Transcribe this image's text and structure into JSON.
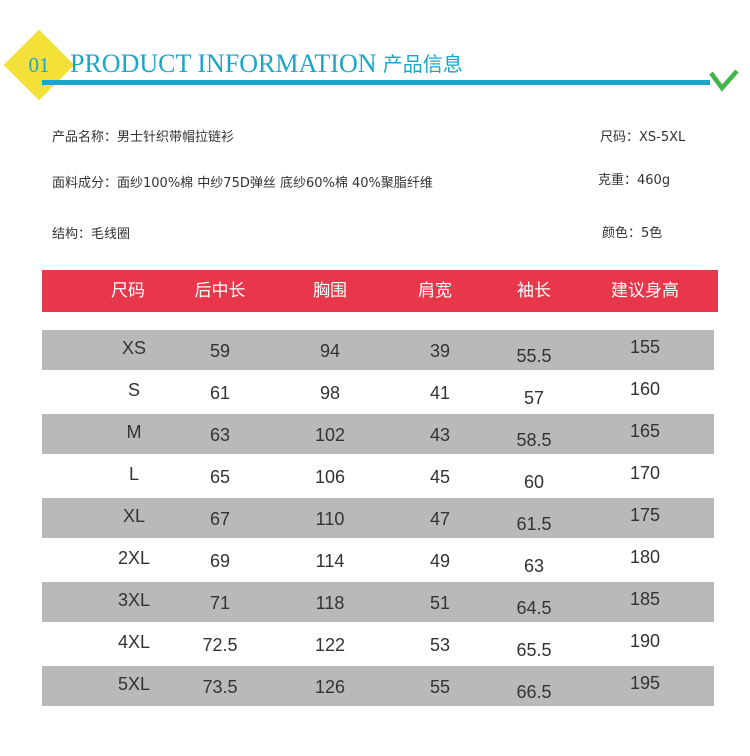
{
  "header": {
    "badge_number": "01",
    "title": "PRODUCT INFORMATION",
    "subtitle": "· 产品信息",
    "accent_color": "#1aa6c8",
    "badge_color": "#f3e13a",
    "check_color": "#3fb54a",
    "check_icon": "check-icon"
  },
  "info": {
    "name": "产品名称：男士针织带帽拉链衫",
    "size": "尺码：XS-5XL",
    "fabric": "面料成分：面纱100%棉 中纱75D弹丝 底纱60%棉 40%聚脂纤维",
    "weight": "克重：460g",
    "structure": "结构：毛线圈",
    "color": "颜色：5色"
  },
  "table": {
    "header_color": "#e8374a",
    "row_gray_color": "#b8b9bb",
    "headers": [
      "尺码",
      "后中长",
      "胸围",
      "肩宽",
      "袖长",
      "建议身高"
    ],
    "rows": [
      [
        "XS",
        "59",
        "94",
        "39",
        "55.5",
        "155"
      ],
      [
        "S",
        "61",
        "98",
        "41",
        "57",
        "160"
      ],
      [
        "M",
        "63",
        "102",
        "43",
        "58.5",
        "165"
      ],
      [
        "L",
        "65",
        "106",
        "45",
        "60",
        "170"
      ],
      [
        "XL",
        "67",
        "110",
        "47",
        "61.5",
        "175"
      ],
      [
        "2XL",
        "69",
        "114",
        "49",
        "63",
        "180"
      ],
      [
        "3XL",
        "71",
        "118",
        "51",
        "64.5",
        "185"
      ],
      [
        "4XL",
        "72.5",
        "122",
        "53",
        "65.5",
        "190"
      ],
      [
        "5XL",
        "73.5",
        "126",
        "55",
        "66.5",
        "195"
      ]
    ]
  }
}
